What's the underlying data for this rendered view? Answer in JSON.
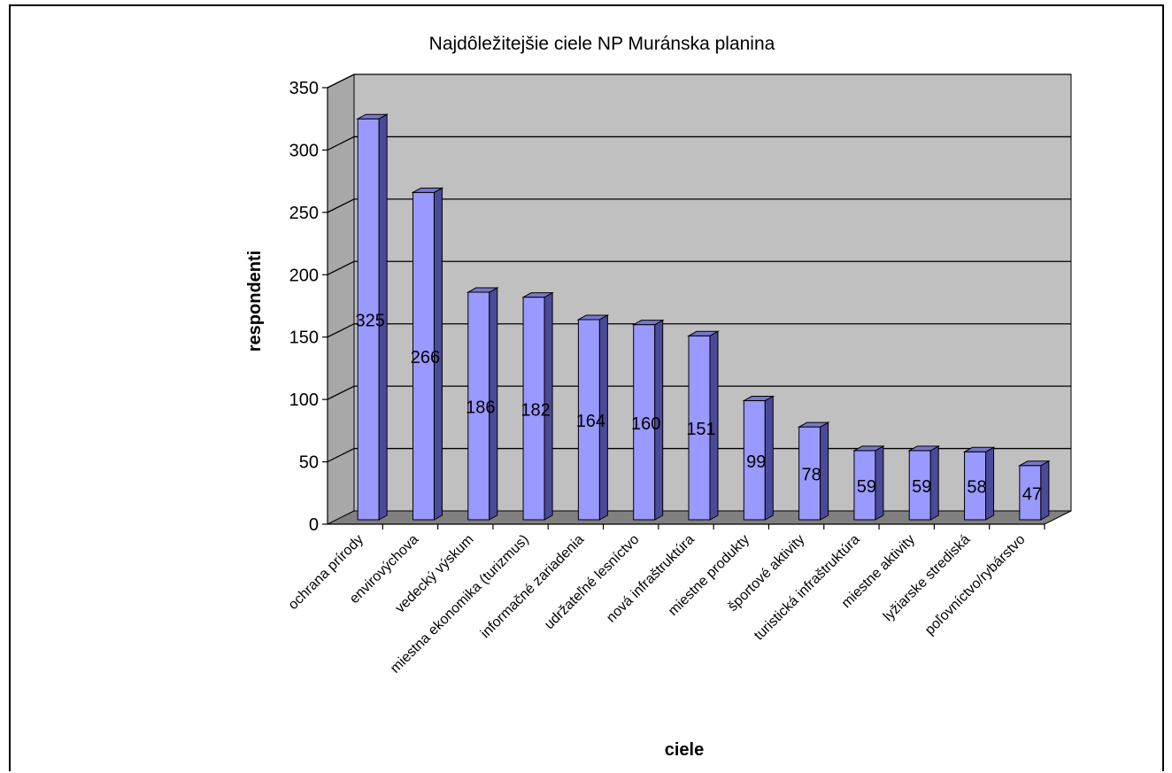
{
  "chart_data": {
    "type": "bar",
    "title": "Najdôležitejšie ciele NP Muránska planina",
    "xlabel": "ciele",
    "ylabel": "respondenti",
    "categories": [
      "ochrana prírody",
      "envirovýchova",
      "vedecký výskum",
      "miestna ekonomika (turizmus)",
      "informačné zariadenia",
      "udržateľné lesníctvo",
      "nová infraštruktúra",
      "miestne produkty",
      "športové aktivity",
      "turistická infraštruktúra",
      "miestne aktivity",
      "lyžiarske strediská",
      "poľovníctvo/rybárstvo"
    ],
    "values": [
      325,
      266,
      186,
      182,
      164,
      160,
      151,
      99,
      78,
      59,
      59,
      58,
      47
    ],
    "ylim": [
      0,
      350
    ],
    "yticks": [
      0,
      50,
      100,
      150,
      200,
      250,
      300,
      350
    ],
    "grid": true,
    "legend": "none",
    "colors": {
      "bar_front": "#9999ff",
      "bar_side": "#4a4a9a",
      "bar_top": "#7777cc",
      "wall": "#c0c0c0",
      "wall_side": "#a8a8a8",
      "floor": "#808080",
      "gridline": "#000000"
    }
  }
}
